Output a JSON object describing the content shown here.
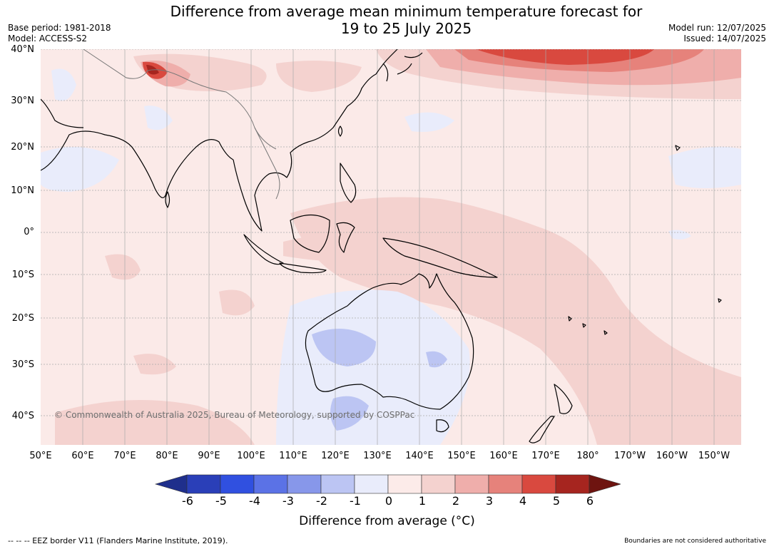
{
  "header": {
    "title_line1": "Difference from average mean minimum temperature forecast for",
    "title_line2": "19 to 25 July 2025",
    "base_period": "Base period: 1981-2018",
    "model": "Model: ACCESS-S2",
    "model_run": "Model run: 12/07/2025",
    "issued": "Issued: 14/07/2025"
  },
  "map": {
    "lat_labels": [
      "40°N",
      "30°N",
      "20°N",
      "10°N",
      "0°",
      "10°S",
      "20°S",
      "30°S",
      "40°S"
    ],
    "lon_labels": [
      "50°E",
      "60°E",
      "70°E",
      "80°E",
      "90°E",
      "100°E",
      "110°E",
      "120°E",
      "130°E",
      "140°E",
      "150°E",
      "160°E",
      "170°E",
      "180°",
      "170°W",
      "160°W",
      "150°W"
    ],
    "copyright": "© Commonwealth of Australia 2025, Bureau of Meteorology, supported by COSPPac",
    "ocean_color": "#fbeae8",
    "land_outline_color": "#000000"
  },
  "colorbar": {
    "title": "Difference from average (°C)",
    "ticks": [
      "-6",
      "-5",
      "-4",
      "-3",
      "-2",
      "-1",
      "0",
      "1",
      "2",
      "3",
      "4",
      "5",
      "6"
    ],
    "colors": [
      "#1f2f8c",
      "#2a3fb8",
      "#3050e0",
      "#5b72e6",
      "#8797ea",
      "#bcc5f3",
      "#e9ecfb",
      "#fcebe9",
      "#f4d2cf",
      "#efaeab",
      "#e6827b",
      "#d9493f",
      "#a6251f",
      "#6e1410"
    ]
  },
  "footer": {
    "eez": "--  --  -- EEZ border V11 (Flanders Marine Institute, 2019).",
    "boundaries": "Boundaries are not considered authoritative"
  }
}
